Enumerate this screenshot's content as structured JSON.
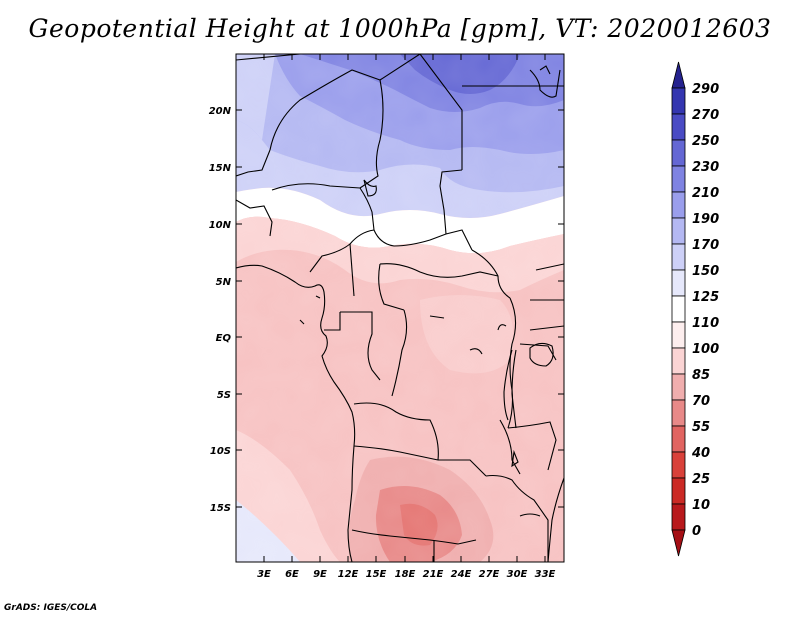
{
  "title": "Geopotential Height at 1000hPa [gpm], VT: 2020012603",
  "credit": "GrADS: IGES/COLA",
  "map": {
    "lat_labels": [
      "20N",
      "15N",
      "10N",
      "5N",
      "EQ",
      "5S",
      "10S",
      "15S"
    ],
    "lon_labels": [
      "3E",
      "6E",
      "9E",
      "12E",
      "15E",
      "18E",
      "21E",
      "24E",
      "27E",
      "30E",
      "33E"
    ],
    "lat_range": [
      -20,
      25
    ],
    "lon_range": [
      0,
      35
    ],
    "variable": "Geopotential Height at 1000hPa",
    "units": "gpm"
  },
  "colorbar": {
    "levels": [
      "0",
      "10",
      "25",
      "40",
      "55",
      "70",
      "85",
      "100",
      "110",
      "125",
      "150",
      "170",
      "190",
      "210",
      "230",
      "250",
      "270",
      "290"
    ],
    "colors": [
      "#a50f15",
      "#b8191c",
      "#cb2a25",
      "#d9413a",
      "#e16461",
      "#e88988",
      "#f0aeae",
      "#fbd4d4",
      "#fdeeee",
      "#ffffff",
      "#e6e8fb",
      "#cdd0f7",
      "#b4b8f2",
      "#9a9eec",
      "#7f83e2",
      "#6467d4",
      "#4a4bc4",
      "#3436b0",
      "#25228f"
    ]
  }
}
